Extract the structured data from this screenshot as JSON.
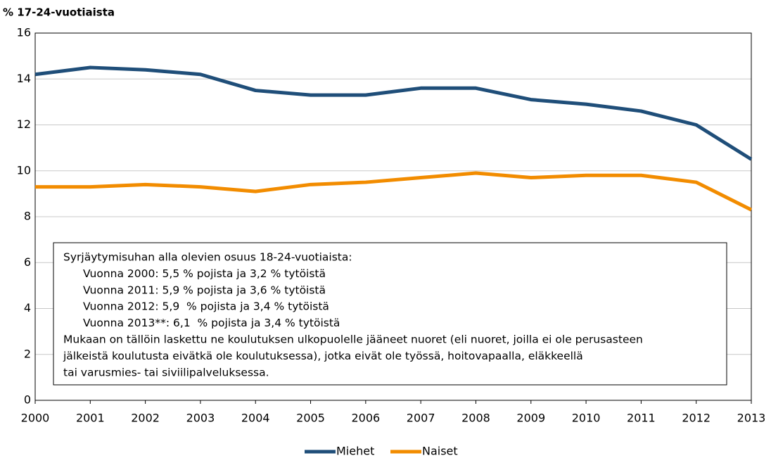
{
  "chart_data": {
    "type": "line",
    "y_label": "% 17-24-vuotiaista",
    "x": [
      2000,
      2001,
      2002,
      2003,
      2004,
      2005,
      2006,
      2007,
      2008,
      2009,
      2010,
      2011,
      2012,
      2013
    ],
    "xlim": [
      2000,
      2013
    ],
    "xticks": [
      2000,
      2001,
      2002,
      2003,
      2004,
      2005,
      2006,
      2007,
      2008,
      2009,
      2010,
      2011,
      2012,
      2013
    ],
    "ylim": [
      0,
      16
    ],
    "yticks": [
      0,
      2,
      4,
      6,
      8,
      10,
      12,
      14,
      16
    ],
    "grid": true,
    "legend": "bottom",
    "series": [
      {
        "name": "Miehet",
        "color": "#1f4e79",
        "values": [
          14.2,
          14.5,
          14.4,
          14.2,
          13.5,
          13.3,
          13.3,
          13.6,
          13.6,
          13.1,
          12.9,
          12.6,
          12.0,
          10.5
        ]
      },
      {
        "name": "Naiset",
        "color": "#f28c00",
        "values": [
          9.3,
          9.3,
          9.4,
          9.3,
          9.1,
          9.4,
          9.5,
          9.7,
          9.9,
          9.7,
          9.8,
          9.8,
          9.5,
          8.3
        ]
      }
    ],
    "annotation": [
      "Syrjäytymisuhan alla olevien osuus 18-24-vuotiaista:",
      "Vuonna 2000: 5,5 % pojista ja 3,2 % tytöistä",
      "Vuonna 2011: 5,9 % pojista ja 3,6 % tytöistä",
      "Vuonna 2012: 5,9  % pojista ja 3,4 % tytöistä",
      "Vuonna 2013**: 6,1  % pojista ja 3,4 % tytöistä",
      "Mukaan on tällöin laskettu ne koulutuksen ulkopuolelle jääneet nuoret (eli nuoret, joilla ei ole perusasteen",
      "jälkeistä koulutusta eivätkä ole koulutuksessa), jotka eivät ole työssä, hoitovapaalla, eläkkeellä",
      "tai varusmies- tai siviilipalveluksessa."
    ]
  }
}
